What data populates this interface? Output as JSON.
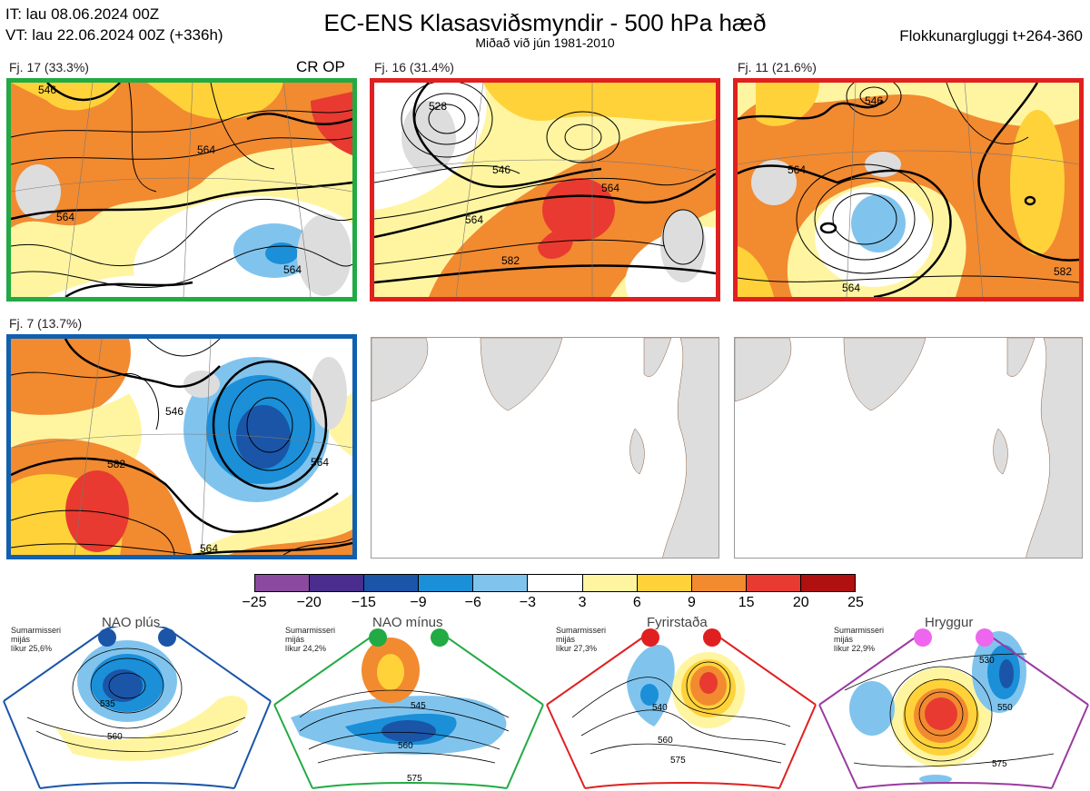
{
  "header": {
    "it_line": "IT: lau 08.06.2024 00Z",
    "vt_line": "VT: lau 22.06.2024 00Z  (+336h)",
    "title": "EC-ENS Klasasviðsmyndir - 500 hPa hæð",
    "subtitle": "Miðað við jún 1981-2010",
    "window": "Flokkunargluggi t+264-360"
  },
  "clusters": [
    {
      "label": "Fj. 17 (33.3%)",
      "tag": "CR OP",
      "border": "#22aa44",
      "contours": [
        "546",
        "564",
        "564",
        "564",
        "564"
      ]
    },
    {
      "label": "Fj. 16 (31.4%)",
      "tag": "",
      "border": "#e02020",
      "contours": [
        "528",
        "546",
        "564",
        "564",
        "582"
      ]
    },
    {
      "label": "Fj. 11 (21.6%)",
      "tag": "",
      "border": "#e02020",
      "contours": [
        "546",
        "564",
        "564",
        "546",
        "564",
        "582",
        "582"
      ]
    },
    {
      "label": "Fj. 7 (13.7%)",
      "tag": "",
      "border": "#1060b0",
      "contours": [
        "546",
        "564",
        "582",
        "564",
        "564",
        "582"
      ]
    }
  ],
  "colorbar": {
    "ticks": [
      "−25",
      "−20",
      "−15",
      "−9",
      "−6",
      "−3",
      "3",
      "6",
      "9",
      "15",
      "20",
      "25"
    ],
    "colors": [
      "#8a4a9e",
      "#4a2d8c",
      "#1a55a8",
      "#1b8fd8",
      "#80c4ee",
      "#ffffff",
      "#fff5a0",
      "#ffd23a",
      "#f28a30",
      "#e83a30",
      "#b01010"
    ]
  },
  "regimes": [
    {
      "name": "NAO plús",
      "note": [
        "Sumarmisseri",
        "mijás",
        "líkur 25,6%"
      ],
      "color": "#1a55a8",
      "contours": [
        "535",
        "560"
      ]
    },
    {
      "name": "NAO mínus",
      "note": [
        "Sumarmisseri",
        "mijás",
        "líkur 24,2%"
      ],
      "color": "#22aa44",
      "contours": [
        "545",
        "560",
        "575"
      ]
    },
    {
      "name": "Fyrirstaða",
      "note": [
        "Sumarmisseri",
        "mijás",
        "líkur 27,3%"
      ],
      "color": "#e02020",
      "contours": [
        "540",
        "560",
        "575"
      ]
    },
    {
      "name": "Hryggur",
      "note": [
        "Sumarmisseri",
        "mijás",
        "líkur 22,9%"
      ],
      "color": "#ee66ee",
      "contours": [
        "530",
        "550",
        "575"
      ]
    }
  ]
}
